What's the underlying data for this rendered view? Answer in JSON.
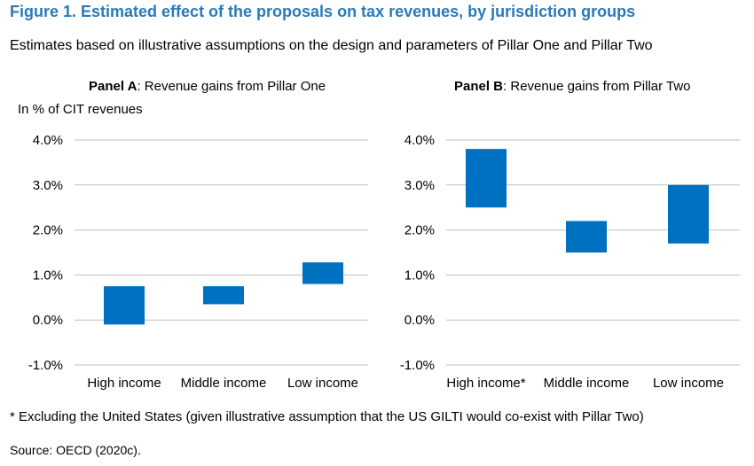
{
  "figure": {
    "title": "Figure 1. Estimated effect of the proposals on tax revenues, by jurisdiction groups",
    "subtitle": "Estimates based on illustrative assumptions on the design and parameters of Pillar One and Pillar Two",
    "footnote": "* Excluding the United States (given illustrative assumption that the US GILTI would co-exist with Pillar Two)",
    "source": "Source: OECD (2020c)."
  },
  "colors": {
    "bar": "#0070c0",
    "grid": "#bfbfbf",
    "title": "#2a7ab9"
  },
  "chart_data": [
    {
      "type": "bar",
      "subtype": "floating-range",
      "panel_label": "Panel A",
      "panel_title": ": Revenue gains from Pillar One",
      "ylabel": "In % of CIT revenues",
      "ylim": [
        -1.0,
        4.0
      ],
      "yticks": [
        4.0,
        3.0,
        2.0,
        1.0,
        0.0,
        -1.0
      ],
      "ytick_labels": [
        "4.0%",
        "3.0%",
        "2.0%",
        "1.0%",
        "0.0%",
        "-1.0%"
      ],
      "grid": true,
      "categories": [
        "High income",
        "Middle income",
        "Low income"
      ],
      "ranges": [
        [
          -0.1,
          0.75
        ],
        [
          0.35,
          0.75
        ],
        [
          0.8,
          1.28
        ]
      ]
    },
    {
      "type": "bar",
      "subtype": "floating-range",
      "panel_label": "Panel B",
      "panel_title": ": Revenue gains from Pillar Two",
      "ylim": [
        -1.0,
        4.0
      ],
      "yticks": [
        4.0,
        3.0,
        2.0,
        1.0,
        0.0,
        -1.0
      ],
      "ytick_labels": [
        "4.0%",
        "3.0%",
        "2.0%",
        "1.0%",
        "0.0%",
        "-1.0%"
      ],
      "grid": true,
      "categories": [
        "High income*",
        "Middle income",
        "Low income"
      ],
      "ranges": [
        [
          2.5,
          3.8
        ],
        [
          1.5,
          2.2
        ],
        [
          1.7,
          3.0
        ]
      ]
    }
  ]
}
